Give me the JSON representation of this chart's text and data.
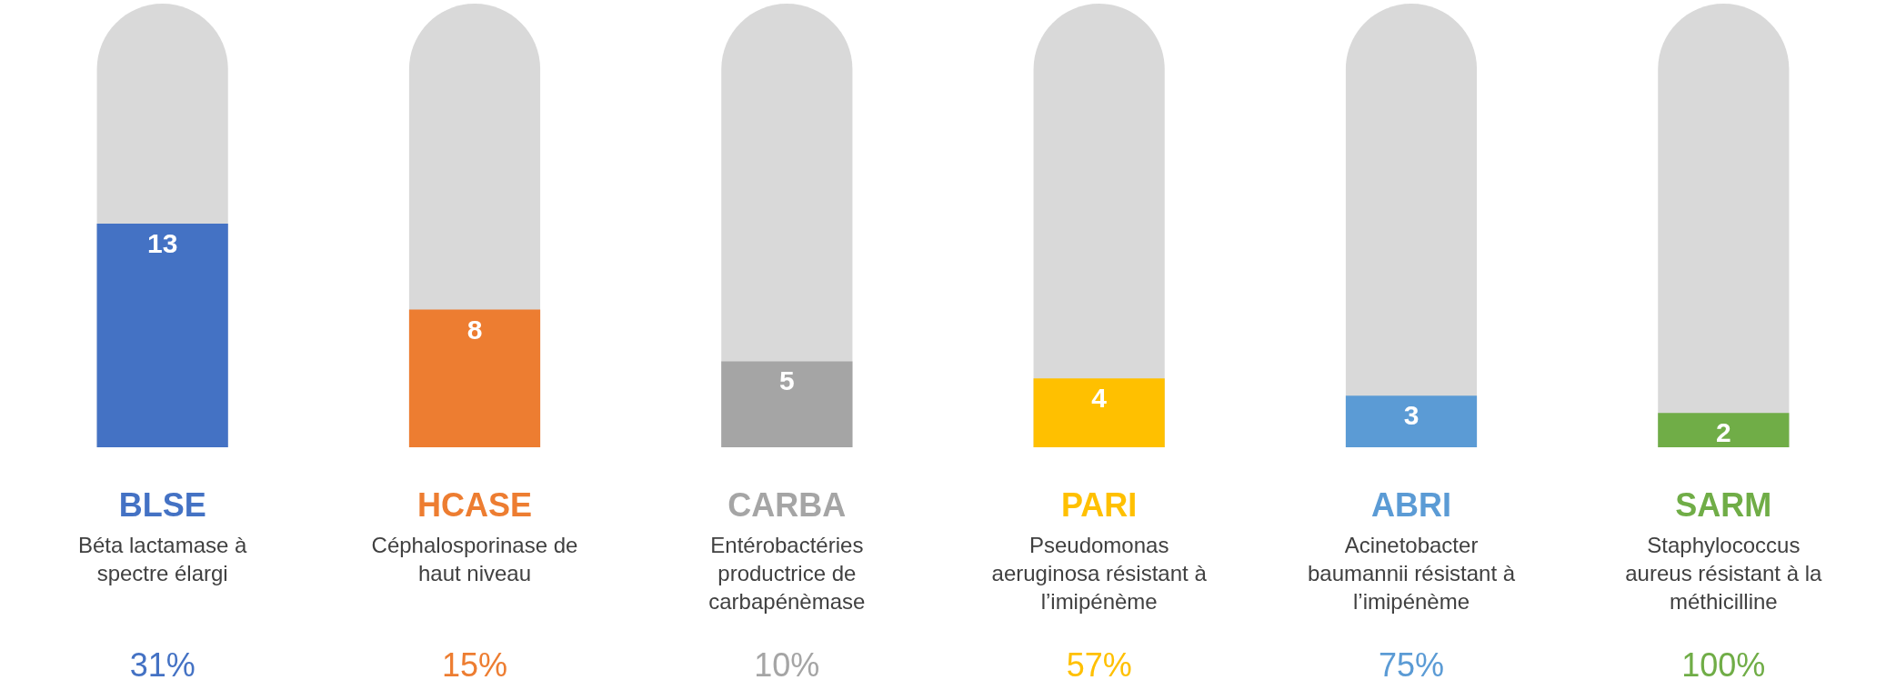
{
  "chart_data": {
    "type": "bar",
    "categories": [
      "BLSE",
      "HCASE",
      "CARBA",
      "PARI",
      "ABRI",
      "SARM"
    ],
    "values": [
      13,
      8,
      5,
      4,
      3,
      2
    ],
    "colors": [
      "#4472c4",
      "#ed7d31",
      "#a5a5a5",
      "#ffc000",
      "#5b9bd5",
      "#70ad47"
    ],
    "data_labels": true,
    "annotations": [
      "Béta lactamase à\nspectre élargi",
      "31%",
      "Céphalosporinase de\nhaut niveau",
      "15%",
      "Entérobactéries\nproductrice de\ncarbapénèmase",
      "10%",
      "Pseudomonas\naeruginosa résistant à\nl’imipénème",
      "57%",
      "Acinetobacter\nbaumannii résistant à\nl’imipénème",
      "75%",
      "Staphylococcus\naureus résistant à la\nméthicilline",
      "100%"
    ]
  }
}
